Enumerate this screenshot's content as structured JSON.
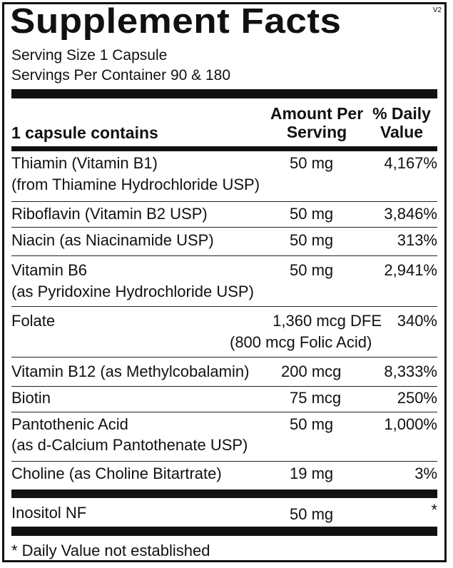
{
  "title": "Supplement Facts",
  "version": "V2",
  "serving_size": "Serving Size 1 Capsule",
  "servings_per_container": "Servings Per Container 90 & 180",
  "headers": {
    "contains": "1 capsule contains",
    "amount_line1": "Amount Per",
    "amount_line2": "Serving",
    "dv_line1": "% Daily",
    "dv_line2": "Value"
  },
  "nutrients": [
    {
      "name": "Thiamin (Vitamin B1)",
      "sub": "(from Thiamine Hydrochloride USP)",
      "amount": "50 mg",
      "dv": "4,167%"
    },
    {
      "name": "Riboflavin (Vitamin B2 USP)",
      "amount": "50 mg",
      "dv": "3,846%"
    },
    {
      "name": "Niacin (as Niacinamide USP)",
      "amount": "50 mg",
      "dv": "313%"
    },
    {
      "name": "Vitamin B6",
      "sub": "(as Pyridoxine Hydrochloride USP)",
      "amount": "50 mg",
      "dv": "2,941%"
    },
    {
      "name": "Folate",
      "amount": "1,360 mcg DFE",
      "amount_sub": "(800 mcg Folic Acid)",
      "dv": "340%"
    },
    {
      "name": "Vitamin B12 (as Methylcobalamin)",
      "amount": "200 mcg",
      "dv": "8,333%"
    },
    {
      "name": "Biotin",
      "amount": "75 mcg",
      "dv": "250%"
    },
    {
      "name": "Pantothenic Acid",
      "sub": "(as d-Calcium Pantothenate USP)",
      "amount": "50 mg",
      "dv": "1,000%"
    },
    {
      "name": "Choline (as Choline Bitartrate)",
      "amount": "19 mg",
      "dv": "3%"
    }
  ],
  "other": [
    {
      "name": "Inositol NF",
      "amount": "50 mg",
      "dv": "*"
    }
  ],
  "footnote": "* Daily Value not established"
}
